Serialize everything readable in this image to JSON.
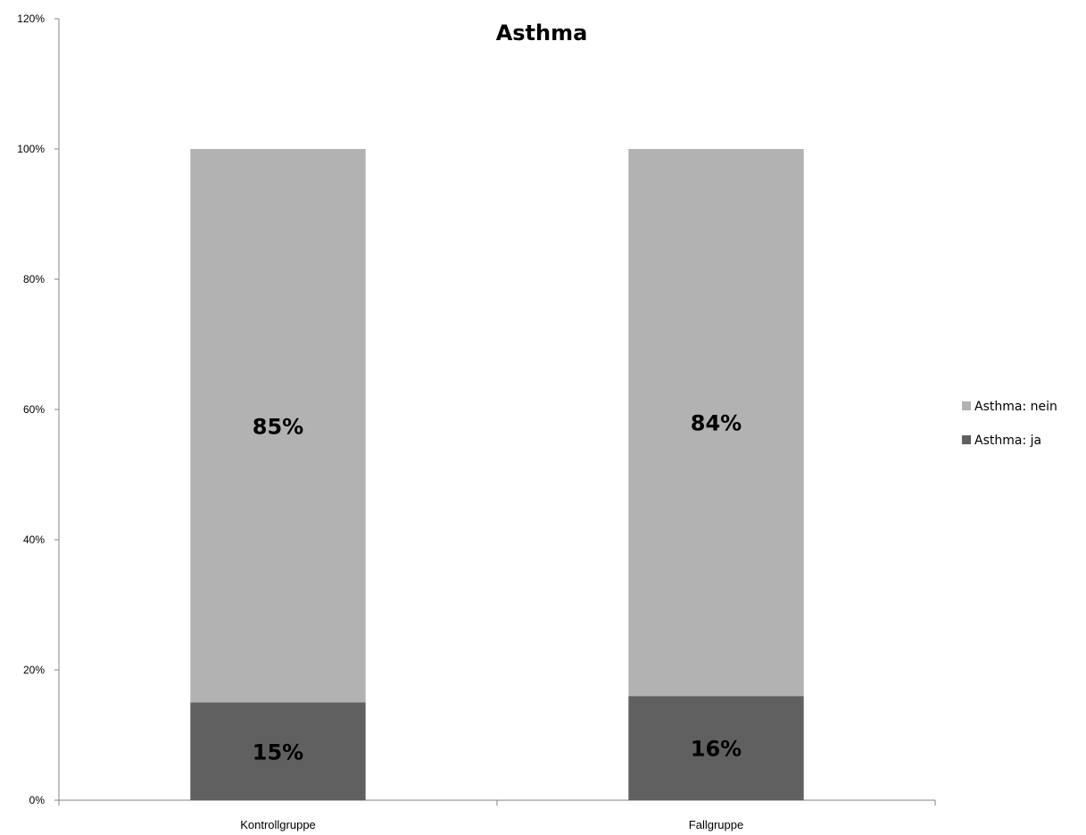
{
  "chart_data": {
    "type": "bar",
    "stacked": true,
    "title": "Asthma",
    "xlabel": "",
    "ylabel": "",
    "categories": [
      "Kontrollgruppe",
      "Fallgruppe"
    ],
    "series": [
      {
        "name": "Asthma: ja",
        "values": [
          15,
          16
        ],
        "labels": [
          "15%",
          "16%"
        ],
        "color": "#606060"
      },
      {
        "name": "Asthma: nein",
        "values": [
          85,
          84
        ],
        "labels": [
          "85%",
          "84%"
        ],
        "color": "#b2b2b2"
      }
    ],
    "ylim": [
      0,
      120
    ],
    "yticks": [
      0,
      20,
      40,
      60,
      80,
      100,
      120
    ],
    "ytick_labels": [
      "0%",
      "20%",
      "40%",
      "60%",
      "80%",
      "100%",
      "120%"
    ],
    "grid": false,
    "legend_position": "right",
    "legend_order": [
      "Asthma: nein",
      "Asthma: ja"
    ]
  }
}
